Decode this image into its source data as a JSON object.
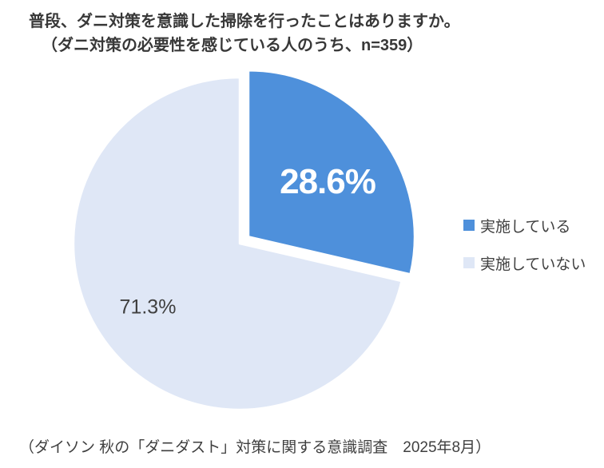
{
  "title": {
    "line1": "普段、ダニ対策を意識した掃除を行ったことはありますか。",
    "line2": "（ダニ対策の必要性を感じている人のうち、n=359）"
  },
  "chart_data": {
    "type": "pie",
    "title": "普段、ダニ対策を意識した掃除を行ったことはありますか。（ダニ対策の必要性を感じている人のうち、n=359）",
    "categories": [
      "実施している",
      "実施していない"
    ],
    "values": [
      28.6,
      71.3
    ],
    "labels": [
      "28.6%",
      "71.3%"
    ],
    "colors": [
      "#4E90DB",
      "#DFE7F6"
    ],
    "label_colors": [
      "#ffffff",
      "#404040"
    ],
    "explode": [
      true,
      false
    ],
    "start_angle_deg": 0,
    "direction": "clockwise",
    "legend_position": "right",
    "legend_text_color": "#404040"
  },
  "footer": {
    "text": "（ダイソン 秋の「ダニダスト」対策に関する意識調査　2025年8月）"
  }
}
